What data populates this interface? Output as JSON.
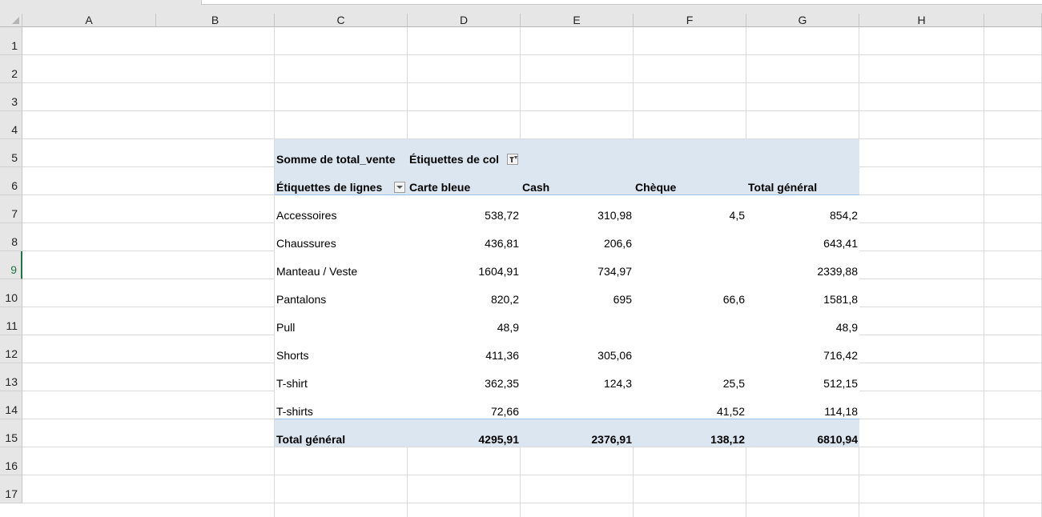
{
  "sheet": {
    "columns": [
      "A",
      "B",
      "C",
      "D",
      "E",
      "F",
      "G",
      "H"
    ],
    "rows": [
      "1",
      "2",
      "3",
      "4",
      "5",
      "6",
      "7",
      "8",
      "9",
      "10",
      "11",
      "12",
      "13",
      "14",
      "15",
      "16",
      "17"
    ],
    "active_row": "9"
  },
  "pivot": {
    "value_field": "Somme de total_vente",
    "column_labels_header": "Étiquettes de col",
    "row_labels_header": "Étiquettes de lignes",
    "column_headers": [
      "Carte bleue",
      "Cash",
      "Chèque",
      "Total général"
    ],
    "rows": [
      {
        "label": "Accessoires",
        "values": [
          "538,72",
          "310,98",
          "4,5",
          "854,2"
        ]
      },
      {
        "label": "Chaussures",
        "values": [
          "436,81",
          "206,6",
          "",
          "643,41"
        ]
      },
      {
        "label": "Manteau / Veste",
        "values": [
          "1604,91",
          "734,97",
          "",
          "2339,88"
        ]
      },
      {
        "label": "Pantalons",
        "values": [
          "820,2",
          "695",
          "66,6",
          "1581,8"
        ]
      },
      {
        "label": "Pull",
        "values": [
          "48,9",
          "",
          "",
          "48,9"
        ]
      },
      {
        "label": "Shorts",
        "values": [
          "411,36",
          "305,06",
          "",
          "716,42"
        ]
      },
      {
        "label": "T-shirt",
        "values": [
          "362,35",
          "124,3",
          "25,5",
          "512,15"
        ]
      },
      {
        "label": "T-shirts",
        "values": [
          "72,66",
          "",
          "41,52",
          "114,18"
        ]
      }
    ],
    "total": {
      "label": "Total général",
      "values": [
        "4295,91",
        "2376,91",
        "138,12",
        "6810,94"
      ]
    },
    "colors": {
      "header_fill": "#dce6f1",
      "rule": "#9bc2e6",
      "active_row": "#217346"
    }
  }
}
